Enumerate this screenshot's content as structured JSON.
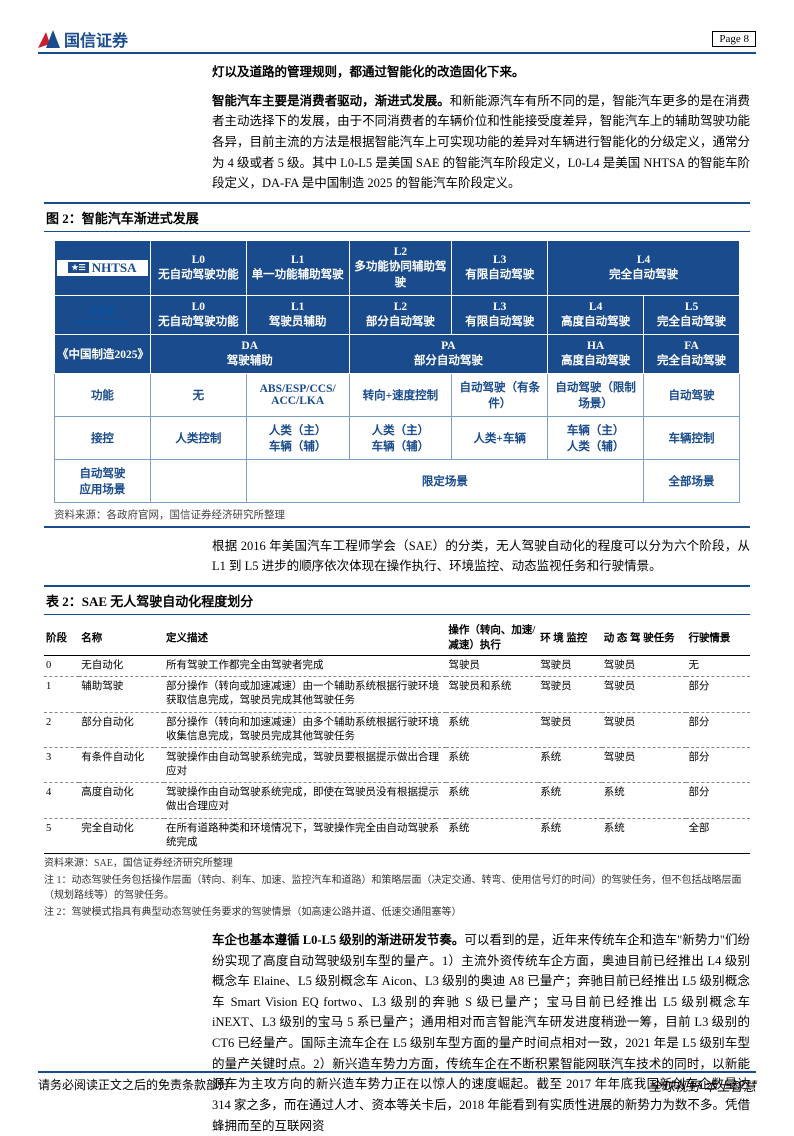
{
  "header": {
    "company": "国信证券",
    "page_label": "Page  8"
  },
  "intro_line": "灯以及道路的管理规则，都通过智能化的改造固化下来。",
  "para1_lead": "智能汽车主要是消费者驱动，渐进式发展。",
  "para1_body": "和新能源汽车有所不同的是，智能汽车更多的是在消费者主动选择下的发展，由于不同消费者的车辆价位和性能接受度差异，智能汽车上的辅助驾驶功能各异，目前主流的方法是根据智能汽车上可实现功能的差异对车辆进行智能化的分级定义，通常分为 4 级或者 5 级。其中 L0-L5 是美国 SAE 的智能汽车阶段定义，L0-L4 是美国 NHTSA 的智能车阶段定义，DA-FA 是中国制造 2025 的智能汽车阶段定义。",
  "fig2_title": "图 2：智能汽车渐进式发展",
  "fig2": {
    "brands": [
      "NHTSA",
      "SAE",
      "《中国制造2025》"
    ],
    "nhtsa": [
      "L0\n无自动驾驶功能",
      "L1\n单一功能辅助驾驶",
      "L2\n多功能协同辅助驾驶",
      "L3\n有限自动驾驶",
      "L4\n完全自动驾驶"
    ],
    "sae": [
      "L0\n无自动驾驶功能",
      "L1\n驾驶员辅助",
      "L2\n部分自动驾驶",
      "L3\n有限自动驾驶",
      "L4\n高度自动驾驶",
      "L5\n完全自动驾驶"
    ],
    "cn": [
      "DA\n驾驶辅助",
      "PA\n部分自动驾驶",
      "HA\n高度自动驾驶",
      "FA\n完全自动驾驶"
    ],
    "rows": [
      {
        "h": "功能",
        "c": [
          "无",
          "ABS/ESP/CCS/\nACC/LKA",
          "转向+速度控制",
          "自动驾驶（有条件）",
          "自动驾驶（限制场景）",
          "自动驾驶"
        ]
      },
      {
        "h": "接控",
        "c": [
          "人类控制",
          "人类（主）\n车辆（辅）",
          "人类（主）\n车辆（辅）",
          "人类+车辆",
          "车辆（主）\n人类（辅）",
          "车辆控制"
        ]
      },
      {
        "h": "自动驾驶\n应用场景",
        "c": [
          "",
          "限定场景",
          "",
          "",
          "",
          "全部场景"
        ],
        "spans": [
          1,
          4,
          0,
          0,
          0,
          1
        ]
      }
    ]
  },
  "fig2_source": "资料来源：各政府官网，国信证券经济研究所整理",
  "para2": "根据 2016 年美国汽车工程师学会（SAE）的分类，无人驾驶自动化的程度可以分为六个阶段，从 L1 到 L5 进步的顺序依次体现在操作执行、环境监控、动态监视任务和行驶情景。",
  "tbl2_title": "表 2：SAE 无人驾驶自动化程度划分",
  "tbl2": {
    "cols": [
      "阶段",
      "名称",
      "定义描述",
      "操作（转向、加速/减速）执行",
      "环 境 监控",
      "动 态 驾 驶任务",
      "行驶情景"
    ],
    "rows": [
      [
        "0",
        "无自动化",
        "所有驾驶工作都完全由驾驶者完成",
        "驾驶员",
        "驾驶员",
        "驾驶员",
        "无"
      ],
      [
        "1",
        "辅助驾驶",
        "部分操作（转向或加速减速）由一个辅助系统根据行驶环境获取信息完成，驾驶员完成其他驾驶任务",
        "驾驶员和系统",
        "驾驶员",
        "驾驶员",
        "部分"
      ],
      [
        "2",
        "部分自动化",
        "部分操作（转向和加速减速）由多个辅助系统根据行驶环境收集信息完成，驾驶员完成其他驾驶任务",
        "系统",
        "驾驶员",
        "驾驶员",
        "部分"
      ],
      [
        "3",
        "有条件自动化",
        "驾驶操作由自动驾驶系统完成，驾驶员要根据提示做出合理应对",
        "系统",
        "系统",
        "驾驶员",
        "部分"
      ],
      [
        "4",
        "高度自动化",
        "驾驶操作由自动驾驶系统完成，即使在驾驶员没有根据提示做出合理应对",
        "系统",
        "系统",
        "系统",
        "部分"
      ],
      [
        "5",
        "完全自动化",
        "在所有道路种类和环境情况下，驾驶操作完全由自动驾驶系统完成",
        "系统",
        "系统",
        "系统",
        "全部"
      ]
    ],
    "source": "资料来源：SAE，国信证券经济研究所整理",
    "note1": "注 1：动态驾驶任务包括操作层面（转向、刹车、加速、监控汽车和道路）和策略层面（决定交通、转弯、使用信号灯的时间）的驾驶任务，但不包括战略层面（规划路线等）的驾驶任务。",
    "note2": "注 2：驾驶模式指具有典型动态驾驶任务要求的驾驶情景（如高速公路并道、低速交通阻塞等）"
  },
  "para3_lead": "车企也基本遵循 L0-L5 级别的渐进研发节奏。",
  "para3_body": "可以看到的是，近年来传统车企和造车\"新势力\"们纷纷实现了高度自动驾驶级别车型的量产。1）主流外资传统车企方面，奥迪目前已经推出 L4 级别概念车 Elaine、L5 级别概念车 Aicon、L3 级别的奥迪 A8 已量产；奔驰目前已经推出 L5 级别概念车 Smart Vision EQ fortwo、L3 级别的奔驰 S 级已量产；宝马目前已经推出 L5 级别概念车 iNEXT、L3 级别的宝马 5 系已量产；通用相对而言智能汽车研发进度稍逊一筹，目前 L3 级别的 CT6 已经量产。国际主流车企在 L5 级别车型方面的量产时间点相对一致，2021 年是 L5 级别车型的量产关键时点。2）新兴造车势力方面，传统车企在不断积累智能网联汽车技术的同时，以新能源车为主攻方向的新兴造车势力正在以惊人的速度崛起。截至 2017 年年底我国新创车企数量达 314 家之多，而在通过人才、资本等关卡后，2018 年能看到有实质性进展的新势力为数不多。凭借蜂拥而至的互联网资",
  "footer_left": "请务必阅读正文之后的免责条款部分",
  "footer_right": "全球视野  本土智慧"
}
